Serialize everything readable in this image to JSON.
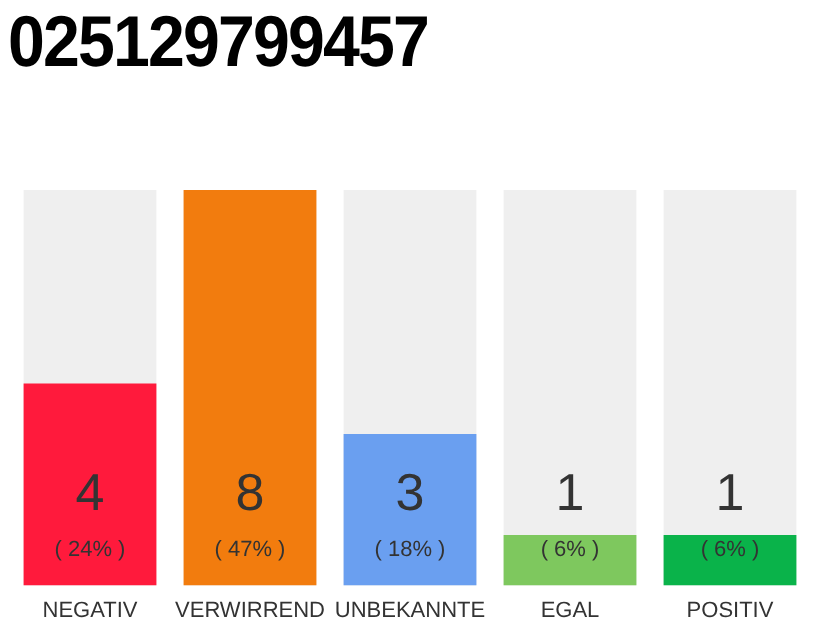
{
  "chart_data": {
    "type": "bar",
    "title": "025129799457",
    "categories": [
      "NEGATIV",
      "VERWIRREND",
      "UNBEKANNTE",
      "EGAL",
      "POSITIV"
    ],
    "values": [
      24,
      47,
      18,
      6,
      6
    ],
    "colors": [
      "#ff1a3c",
      "#f27c0e",
      "#6a9ff0",
      "#7ec85e",
      "#0ab34a"
    ],
    "value_labels": [
      "( 24% )",
      "( 47% )",
      "( 18% )",
      "( 6% )",
      "( 6% )"
    ],
    "annotations": [
      "4",
      "8",
      "3",
      "1",
      "1"
    ],
    "grid": false,
    "legend": false
  }
}
